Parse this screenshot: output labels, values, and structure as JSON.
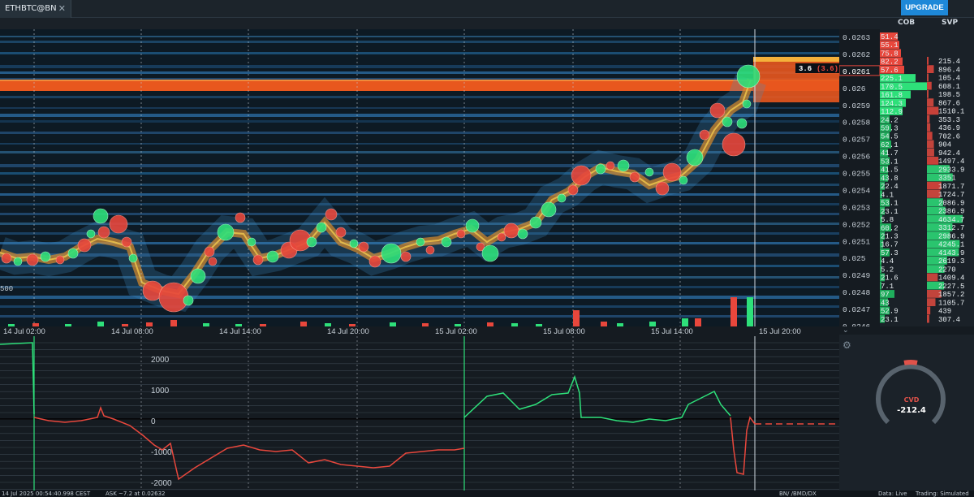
{
  "tab": {
    "title": "ETHBTC@BN",
    "close": "✕"
  },
  "upgrade_label": "UPGRADE",
  "columns": {
    "cob": "COB",
    "svp": "SVP"
  },
  "colors": {
    "background": "#0d1a24",
    "buy": "#2ee07a",
    "sell": "#e8473c",
    "orange_band": "#e8571e",
    "axis_text": "#c8d0d8"
  },
  "price_axis": [
    "0.0263",
    "0.0262",
    "0.0261",
    "0.026",
    "0.0259",
    "0.0258",
    "0.0257",
    "0.0256",
    "0.0255",
    "0.0254",
    "0.0253",
    "0.0252",
    "0.0251",
    "0.025",
    "0.0249",
    "0.0248",
    "0.0247",
    "0.0246"
  ],
  "current_price": "0.0261",
  "price_marker": {
    "text": "3.6",
    "paren": "(3.6)"
  },
  "left_level_label": "500",
  "time_axis": [
    "14 Jul 02:00",
    "14 Jul 08:00",
    "14 Jul 14:00",
    "14 Jul 20:00",
    "15 Jul 02:00",
    "15 Jul 08:00",
    "15 Jul 14:00",
    "15 Jul 20:00"
  ],
  "cob_values": [
    "51.4",
    "55.1",
    "75.8",
    "82.2",
    "57.6",
    "225.1",
    "170.5",
    "161.8",
    "124.3",
    "112.9",
    "24.2",
    "59.3",
    "54.5",
    "62.1",
    "41.7",
    "53.1",
    "41.5",
    "43.8",
    "22.4",
    "4.1",
    "53.1",
    "23.1",
    "5.8",
    "60.2",
    "21.3",
    "16.7",
    "57.3",
    "4.4",
    "5.2",
    "21.6",
    "7.1",
    "97",
    "43",
    "52.9",
    "23.1"
  ],
  "svp_values": [
    "215.4",
    "896.4",
    "105.4",
    "608.1",
    "198.5",
    "867.6",
    "1510.1",
    "353.3",
    "436.9",
    "702.6",
    "904",
    "942.4",
    "1497.4",
    "2933.9",
    "3351",
    "1871.7",
    "1724.7",
    "2086.9",
    "2386.9",
    "4634.7",
    "3312.7",
    "2986.9",
    "4245.1",
    "4143.9",
    "2619.3",
    "2270",
    "1409.4",
    "2227.5",
    "1857.2",
    "1105.7",
    "439",
    "307.4"
  ],
  "cvd_axis": [
    "2000",
    "1000",
    "0",
    "-1000",
    "-2000"
  ],
  "cvd": {
    "label": "CVD",
    "value": "-212.4"
  },
  "footer": {
    "timestamp": "14 Jul 2025 00:54:40.998 CEST",
    "ask": "ASK ~7.2 at 0.02632",
    "exchanges": "BN/     /BMD/DX",
    "data": "Data: Live",
    "trading": "Trading: Simulated"
  }
}
